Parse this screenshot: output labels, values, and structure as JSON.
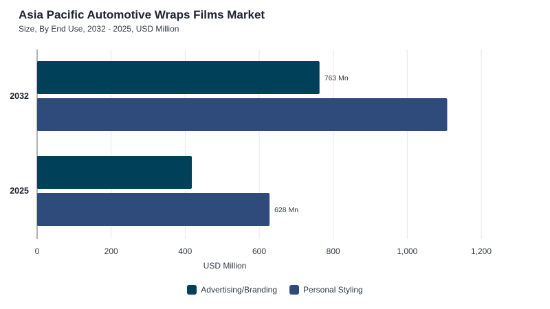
{
  "title": "Asia Pacific Automotive Wraps Films Market",
  "subtitle": "Size, By End Use, 2032 - 2025, USD Million",
  "chart_data": {
    "type": "bar",
    "orientation": "horizontal",
    "categories": [
      "2032",
      "2025"
    ],
    "series": [
      {
        "name": "Advertising/Branding",
        "color": "#004059",
        "values": [
          763,
          418
        ],
        "labels": [
          "763 Mn",
          ""
        ]
      },
      {
        "name": "Personal Styling",
        "color": "#2f4b7c",
        "values": [
          1108,
          628
        ],
        "labels": [
          "",
          "628 Mn"
        ]
      }
    ],
    "xlabel": "USD Million",
    "xlim": [
      0,
      1200
    ],
    "xticks": [
      "0",
      "200",
      "400",
      "600",
      "800",
      "1,000",
      "1,200"
    ],
    "grid": true,
    "legend_position": "bottom"
  }
}
